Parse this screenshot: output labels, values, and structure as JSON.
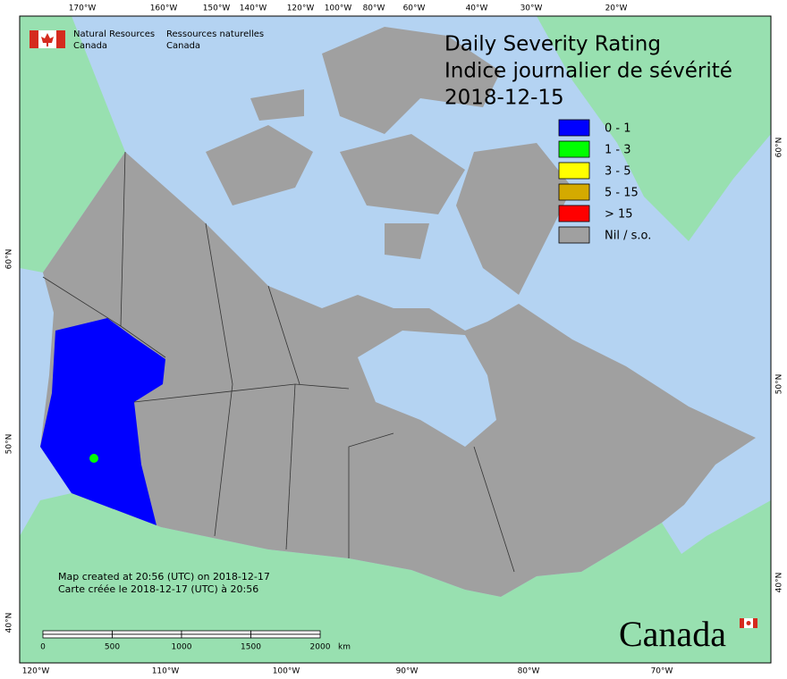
{
  "header": {
    "org_en": [
      "Natural Resources",
      "Canada"
    ],
    "org_fr": [
      "Ressources naturelles",
      "Canada"
    ]
  },
  "title": [
    "Daily Severity Rating",
    "Indice journalier de sévérité",
    "2018-12-15"
  ],
  "legend": [
    {
      "label": "0 - 1",
      "color": "#0000ff"
    },
    {
      "label": "1 - 3",
      "color": "#00ff00"
    },
    {
      "label": "3 - 5",
      "color": "#ffff00"
    },
    {
      "label": "5 - 15",
      "color": "#d4aa00"
    },
    {
      "label": "> 15",
      "color": "#ff0000"
    },
    {
      "label": "Nil / s.o.",
      "color": "#a0a0a0"
    }
  ],
  "graticule": {
    "top": [
      "170°W",
      "160°W",
      "150°W",
      "140°W",
      "120°W",
      "100°W",
      "80°W",
      "60°W",
      "40°W",
      "30°W",
      "20°W"
    ],
    "bottom": [
      "120°W",
      "110°W",
      "100°W",
      "90°W",
      "80°W",
      "70°W"
    ],
    "left": [
      "60°N",
      "50°N",
      "40°N"
    ],
    "right": [
      "60°N",
      "50°N",
      "40°N"
    ]
  },
  "notes": [
    "Map created at 20:56 (UTC) on 2018-12-17",
    "Carte créée le 2018-12-17 (UTC) à 20:56"
  ],
  "scale_bar": {
    "labels": [
      0,
      500,
      1000,
      1500,
      2000
    ],
    "unit": "km"
  },
  "wordmark": "Canada"
}
